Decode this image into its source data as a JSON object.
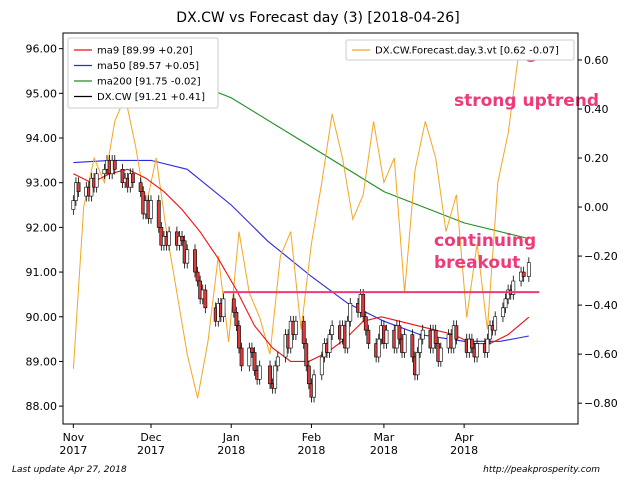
{
  "chart_data": {
    "type": "candlestick",
    "title": "DX.CW vs Forecast day (3)  [2018-04-26]",
    "x_ticks": [
      {
        "date": "2017-11-01",
        "line1": "Nov",
        "line2": "2017"
      },
      {
        "date": "2017-12-01",
        "line1": "Dec",
        "line2": "2017"
      },
      {
        "date": "2018-01-01",
        "line1": "Jan",
        "line2": "2018"
      },
      {
        "date": "2018-02-01",
        "line1": "Feb",
        "line2": "2018"
      },
      {
        "date": "2018-03-01",
        "line1": "Mar",
        "line2": "2018"
      },
      {
        "date": "2018-04-01",
        "line1": "Apr",
        "line2": "2018"
      }
    ],
    "x_range": [
      "2017-10-28",
      "2018-05-15"
    ],
    "y_left": {
      "range": [
        87.6,
        96.35
      ],
      "ticks": [
        88.0,
        89.0,
        90.0,
        91.0,
        92.0,
        93.0,
        94.0,
        95.0,
        96.0
      ]
    },
    "y_right": {
      "range": [
        -0.885,
        0.71
      ],
      "ticks": [
        -0.8,
        -0.6,
        -0.4,
        -0.2,
        0.0,
        0.2,
        0.4,
        0.6
      ]
    },
    "legend_left": [
      {
        "label": "ma9 [89.99 +0.20]",
        "color": "#ee1111"
      },
      {
        "label": "ma50 [89.57 +0.05]",
        "color": "#2a2ae0"
      },
      {
        "label": "ma200 [91.75 -0.02]",
        "color": "#1e8f1e"
      },
      {
        "label": "DX.CW [91.21 +0.41]",
        "color": "#000000"
      }
    ],
    "legend_right": {
      "label": "DX.CW.Forecast.day.3.vt [0.62 -0.07]",
      "color": "#f5a623"
    },
    "annotations": {
      "strong_uptrend": "strong uptrend",
      "breakout_line1": "continuing",
      "breakout_line2": "breakout",
      "breakout_level": 90.55,
      "breakout_start": "2017-12-29",
      "breakout_end": "2018-04-30",
      "circle_date": "2018-04-26",
      "circle_value": 0.62
    },
    "series": {
      "ma9": {
        "color": "#ee1111",
        "points": [
          [
            "2017-11-01",
            93.2
          ],
          [
            "2017-11-08",
            93.0
          ],
          [
            "2017-11-15",
            93.2
          ],
          [
            "2017-11-22",
            93.3
          ],
          [
            "2017-11-29",
            93.1
          ],
          [
            "2017-12-06",
            92.8
          ],
          [
            "2017-12-13",
            92.4
          ],
          [
            "2017-12-20",
            91.9
          ],
          [
            "2017-12-27",
            91.3
          ],
          [
            "2018-01-03",
            90.6
          ],
          [
            "2018-01-10",
            89.8
          ],
          [
            "2018-01-17",
            89.3
          ],
          [
            "2018-01-24",
            89.0
          ],
          [
            "2018-01-31",
            89.0
          ],
          [
            "2018-02-07",
            89.2
          ],
          [
            "2018-02-14",
            89.5
          ],
          [
            "2018-02-21",
            89.9
          ],
          [
            "2018-02-28",
            90.0
          ],
          [
            "2018-03-07",
            89.9
          ],
          [
            "2018-03-14",
            89.8
          ],
          [
            "2018-03-21",
            89.7
          ],
          [
            "2018-03-28",
            89.6
          ],
          [
            "2018-04-04",
            89.4
          ],
          [
            "2018-04-11",
            89.4
          ],
          [
            "2018-04-18",
            89.6
          ],
          [
            "2018-04-26",
            89.99
          ]
        ]
      },
      "ma50": {
        "color": "#2a2ae0",
        "points": [
          [
            "2017-11-01",
            93.45
          ],
          [
            "2017-11-15",
            93.5
          ],
          [
            "2017-12-01",
            93.5
          ],
          [
            "2017-12-15",
            93.3
          ],
          [
            "2018-01-01",
            92.5
          ],
          [
            "2018-01-15",
            91.7
          ],
          [
            "2018-02-01",
            90.9
          ],
          [
            "2018-02-15",
            90.3
          ],
          [
            "2018-03-01",
            89.9
          ],
          [
            "2018-03-15",
            89.6
          ],
          [
            "2018-04-01",
            89.45
          ],
          [
            "2018-04-15",
            89.45
          ],
          [
            "2018-04-26",
            89.57
          ]
        ]
      },
      "ma200": {
        "color": "#1e8f1e",
        "points": [
          [
            "2017-12-01",
            95.6
          ],
          [
            "2018-01-01",
            94.9
          ],
          [
            "2018-02-01",
            93.8
          ],
          [
            "2018-03-01",
            92.8
          ],
          [
            "2018-04-01",
            92.1
          ],
          [
            "2018-04-26",
            91.75
          ]
        ]
      },
      "forecast": {
        "color": "#f5a623",
        "axis": "right",
        "points": [
          [
            "2017-11-01",
            -0.66
          ],
          [
            "2017-11-05",
            0.0
          ],
          [
            "2017-11-09",
            0.2
          ],
          [
            "2017-11-13",
            0.1
          ],
          [
            "2017-11-17",
            0.35
          ],
          [
            "2017-11-21",
            0.45
          ],
          [
            "2017-11-25",
            0.25
          ],
          [
            "2017-11-29",
            0.0
          ],
          [
            "2017-12-03",
            0.2
          ],
          [
            "2017-12-07",
            -0.1
          ],
          [
            "2017-12-11",
            -0.35
          ],
          [
            "2017-12-15",
            -0.6
          ],
          [
            "2017-12-19",
            -0.78
          ],
          [
            "2017-12-23",
            -0.55
          ],
          [
            "2017-12-27",
            -0.2
          ],
          [
            "2017-12-31",
            -0.55
          ],
          [
            "2018-01-04",
            -0.1
          ],
          [
            "2018-01-08",
            -0.35
          ],
          [
            "2018-01-12",
            -0.45
          ],
          [
            "2018-01-16",
            -0.6
          ],
          [
            "2018-01-20",
            -0.2
          ],
          [
            "2018-01-24",
            -0.1
          ],
          [
            "2018-01-28",
            -0.5
          ],
          [
            "2018-02-01",
            -0.15
          ],
          [
            "2018-02-05",
            0.1
          ],
          [
            "2018-02-09",
            0.38
          ],
          [
            "2018-02-13",
            0.2
          ],
          [
            "2018-02-17",
            -0.05
          ],
          [
            "2018-02-21",
            0.05
          ],
          [
            "2018-02-25",
            0.35
          ],
          [
            "2018-03-01",
            0.1
          ],
          [
            "2018-03-05",
            0.2
          ],
          [
            "2018-03-09",
            -0.35
          ],
          [
            "2018-03-13",
            0.15
          ],
          [
            "2018-03-17",
            0.35
          ],
          [
            "2018-03-21",
            0.2
          ],
          [
            "2018-03-25",
            -0.1
          ],
          [
            "2018-03-29",
            0.05
          ],
          [
            "2018-04-02",
            -0.45
          ],
          [
            "2018-04-06",
            -0.15
          ],
          [
            "2018-04-10",
            -0.5
          ],
          [
            "2018-04-14",
            0.1
          ],
          [
            "2018-04-18",
            0.3
          ],
          [
            "2018-04-22",
            0.62
          ],
          [
            "2018-04-26",
            0.62
          ]
        ]
      }
    },
    "candles": [
      [
        "2017-11-01",
        92.4,
        92.6
      ],
      [
        "2017-11-02",
        92.6,
        93.0
      ],
      [
        "2017-11-03",
        93.0,
        92.8
      ],
      [
        "2017-11-06",
        92.7,
        92.9
      ],
      [
        "2017-11-07",
        92.9,
        92.7
      ],
      [
        "2017-11-08",
        92.7,
        93.1
      ],
      [
        "2017-11-09",
        93.1,
        92.9
      ],
      [
        "2017-11-10",
        92.9,
        93.2
      ],
      [
        "2017-11-13",
        93.2,
        93.3
      ],
      [
        "2017-11-14",
        93.3,
        93.5
      ],
      [
        "2017-11-15",
        93.5,
        93.2
      ],
      [
        "2017-11-16",
        93.2,
        93.5
      ],
      [
        "2017-11-17",
        93.5,
        93.3
      ],
      [
        "2017-11-20",
        93.3,
        93.0
      ],
      [
        "2017-11-21",
        93.0,
        93.1
      ],
      [
        "2017-11-22",
        93.1,
        92.9
      ],
      [
        "2017-11-23",
        92.9,
        93.2
      ],
      [
        "2017-11-24",
        93.2,
        93.0
      ],
      [
        "2017-11-27",
        93.0,
        92.8
      ],
      [
        "2017-11-28",
        92.8,
        92.3
      ],
      [
        "2017-11-29",
        92.3,
        92.6
      ],
      [
        "2017-11-30",
        92.6,
        92.2
      ],
      [
        "2017-12-01",
        92.2,
        92.6
      ],
      [
        "2017-12-04",
        92.6,
        92.0
      ],
      [
        "2017-12-05",
        92.0,
        91.6
      ],
      [
        "2017-12-06",
        91.6,
        91.8
      ],
      [
        "2017-12-07",
        91.8,
        91.6
      ],
      [
        "2017-12-08",
        91.6,
        91.9
      ],
      [
        "2017-12-11",
        91.9,
        91.6
      ],
      [
        "2017-12-12",
        91.6,
        91.8
      ],
      [
        "2017-12-13",
        91.8,
        91.7
      ],
      [
        "2017-12-14",
        91.7,
        91.2
      ],
      [
        "2017-12-15",
        91.2,
        91.5
      ],
      [
        "2017-12-18",
        91.5,
        91.0
      ],
      [
        "2017-12-19",
        91.0,
        90.8
      ],
      [
        "2017-12-20",
        90.8,
        90.4
      ],
      [
        "2017-12-21",
        90.4,
        90.6
      ],
      [
        "2017-12-22",
        90.6,
        90.2
      ],
      [
        "2017-12-26",
        90.2,
        89.9
      ],
      [
        "2017-12-27",
        89.9,
        90.3
      ],
      [
        "2017-12-28",
        90.3,
        90.0
      ],
      [
        "2017-12-29",
        90.0,
        90.4
      ],
      [
        "2018-01-02",
        90.4,
        90.1
      ],
      [
        "2018-01-03",
        90.1,
        89.8
      ],
      [
        "2018-01-04",
        89.8,
        89.3
      ],
      [
        "2018-01-05",
        89.3,
        88.9
      ],
      [
        "2018-01-08",
        88.9,
        89.3
      ],
      [
        "2018-01-09",
        89.3,
        89.2
      ],
      [
        "2018-01-10",
        89.2,
        88.8
      ],
      [
        "2018-01-11",
        88.8,
        88.6
      ],
      [
        "2018-01-12",
        88.6,
        88.9
      ],
      [
        "2018-01-16",
        88.9,
        88.5
      ],
      [
        "2018-01-17",
        88.5,
        88.4
      ],
      [
        "2018-01-18",
        88.4,
        88.9
      ],
      [
        "2018-01-19",
        88.9,
        89.1
      ],
      [
        "2018-01-22",
        89.1,
        89.6
      ],
      [
        "2018-01-23",
        89.6,
        89.3
      ],
      [
        "2018-01-24",
        89.3,
        89.9
      ],
      [
        "2018-01-25",
        89.9,
        89.6
      ],
      [
        "2018-01-26",
        89.6,
        89.9
      ],
      [
        "2018-01-29",
        89.9,
        89.4
      ],
      [
        "2018-01-30",
        89.4,
        88.9
      ],
      [
        "2018-01-31",
        88.9,
        88.5
      ],
      [
        "2018-02-01",
        88.5,
        88.2
      ],
      [
        "2018-02-02",
        88.2,
        88.7
      ],
      [
        "2018-02-05",
        88.7,
        89.1
      ],
      [
        "2018-02-06",
        89.1,
        89.4
      ],
      [
        "2018-02-07",
        89.4,
        89.2
      ],
      [
        "2018-02-08",
        89.2,
        89.6
      ],
      [
        "2018-02-09",
        89.6,
        89.8
      ],
      [
        "2018-02-12",
        89.8,
        89.5
      ],
      [
        "2018-02-13",
        89.5,
        89.8
      ],
      [
        "2018-02-14",
        89.8,
        89.3
      ],
      [
        "2018-02-15",
        89.3,
        89.9
      ],
      [
        "2018-02-16",
        89.9,
        90.3
      ],
      [
        "2018-02-19",
        90.3,
        90.1
      ],
      [
        "2018-02-20",
        90.1,
        90.5
      ],
      [
        "2018-02-21",
        90.5,
        90.0
      ],
      [
        "2018-02-22",
        90.0,
        89.7
      ],
      [
        "2018-02-23",
        89.7,
        89.4
      ],
      [
        "2018-02-26",
        89.4,
        89.1
      ],
      [
        "2018-02-27",
        89.1,
        89.5
      ],
      [
        "2018-02-28",
        89.5,
        89.8
      ],
      [
        "2018-03-01",
        89.8,
        89.4
      ],
      [
        "2018-03-02",
        89.4,
        89.7
      ],
      [
        "2018-03-05",
        89.7,
        89.3
      ],
      [
        "2018-03-06",
        89.3,
        89.8
      ],
      [
        "2018-03-07",
        89.8,
        89.5
      ],
      [
        "2018-03-08",
        89.5,
        89.2
      ],
      [
        "2018-03-09",
        89.2,
        89.6
      ],
      [
        "2018-03-12",
        89.6,
        89.1
      ],
      [
        "2018-03-13",
        89.1,
        88.7
      ],
      [
        "2018-03-14",
        88.7,
        89.2
      ],
      [
        "2018-03-15",
        89.2,
        89.5
      ],
      [
        "2018-03-16",
        89.5,
        89.7
      ],
      [
        "2018-03-19",
        89.7,
        89.3
      ],
      [
        "2018-03-20",
        89.3,
        89.7
      ],
      [
        "2018-03-21",
        89.7,
        89.4
      ],
      [
        "2018-03-22",
        89.4,
        89.0
      ],
      [
        "2018-03-23",
        89.0,
        89.3
      ],
      [
        "2018-03-26",
        89.3,
        89.6
      ],
      [
        "2018-03-27",
        89.6,
        89.3
      ],
      [
        "2018-03-28",
        89.3,
        89.8
      ],
      [
        "2018-03-29",
        89.8,
        89.5
      ],
      [
        "2018-04-02",
        89.5,
        89.2
      ],
      [
        "2018-04-03",
        89.2,
        89.5
      ],
      [
        "2018-04-04",
        89.5,
        89.3
      ],
      [
        "2018-04-05",
        89.3,
        89.1
      ],
      [
        "2018-04-06",
        89.1,
        89.4
      ],
      [
        "2018-04-09",
        89.4,
        89.2
      ],
      [
        "2018-04-10",
        89.2,
        89.5
      ],
      [
        "2018-04-11",
        89.5,
        89.8
      ],
      [
        "2018-04-12",
        89.8,
        89.7
      ],
      [
        "2018-04-13",
        89.7,
        90.0
      ],
      [
        "2018-04-16",
        90.0,
        90.2
      ],
      [
        "2018-04-17",
        90.2,
        90.4
      ],
      [
        "2018-04-18",
        90.4,
        90.6
      ],
      [
        "2018-04-19",
        90.6,
        90.5
      ],
      [
        "2018-04-20",
        90.5,
        90.8
      ],
      [
        "2018-04-23",
        90.8,
        91.0
      ],
      [
        "2018-04-24",
        91.0,
        90.9
      ],
      [
        "2018-04-26",
        90.9,
        91.21
      ]
    ]
  },
  "footer": {
    "left": "Last update Apr 27, 2018",
    "right": "http://peakprosperity.com"
  },
  "colors": {
    "candle_up": "#ffffff",
    "candle_down": "#d93a3a",
    "volume_up": "#bdbdbd",
    "volume_down": "#f2b8b8"
  }
}
